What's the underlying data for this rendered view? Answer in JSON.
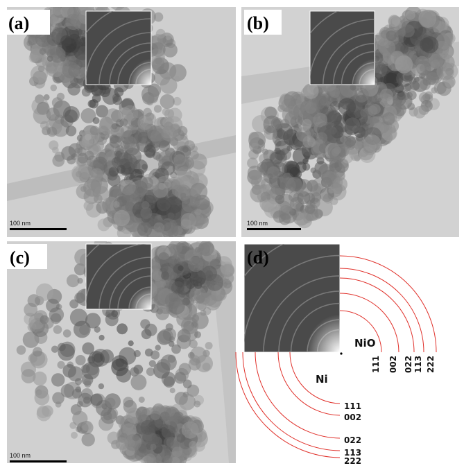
{
  "panels": [
    {
      "label": "(a)",
      "scale_bar": "100 nm"
    },
    {
      "label": "(b)",
      "scale_bar": "100 nm"
    },
    {
      "label": "(c)",
      "scale_bar": "100 nm"
    },
    {
      "label": "(d)"
    }
  ],
  "diffraction": {
    "NiO": {
      "name": "NiO",
      "rings": [
        "111",
        "002",
        "022",
        "113",
        "222"
      ]
    },
    "Ni": {
      "name": "Ni",
      "rings": [
        "111",
        "002",
        "022",
        "113",
        "222"
      ]
    }
  }
}
